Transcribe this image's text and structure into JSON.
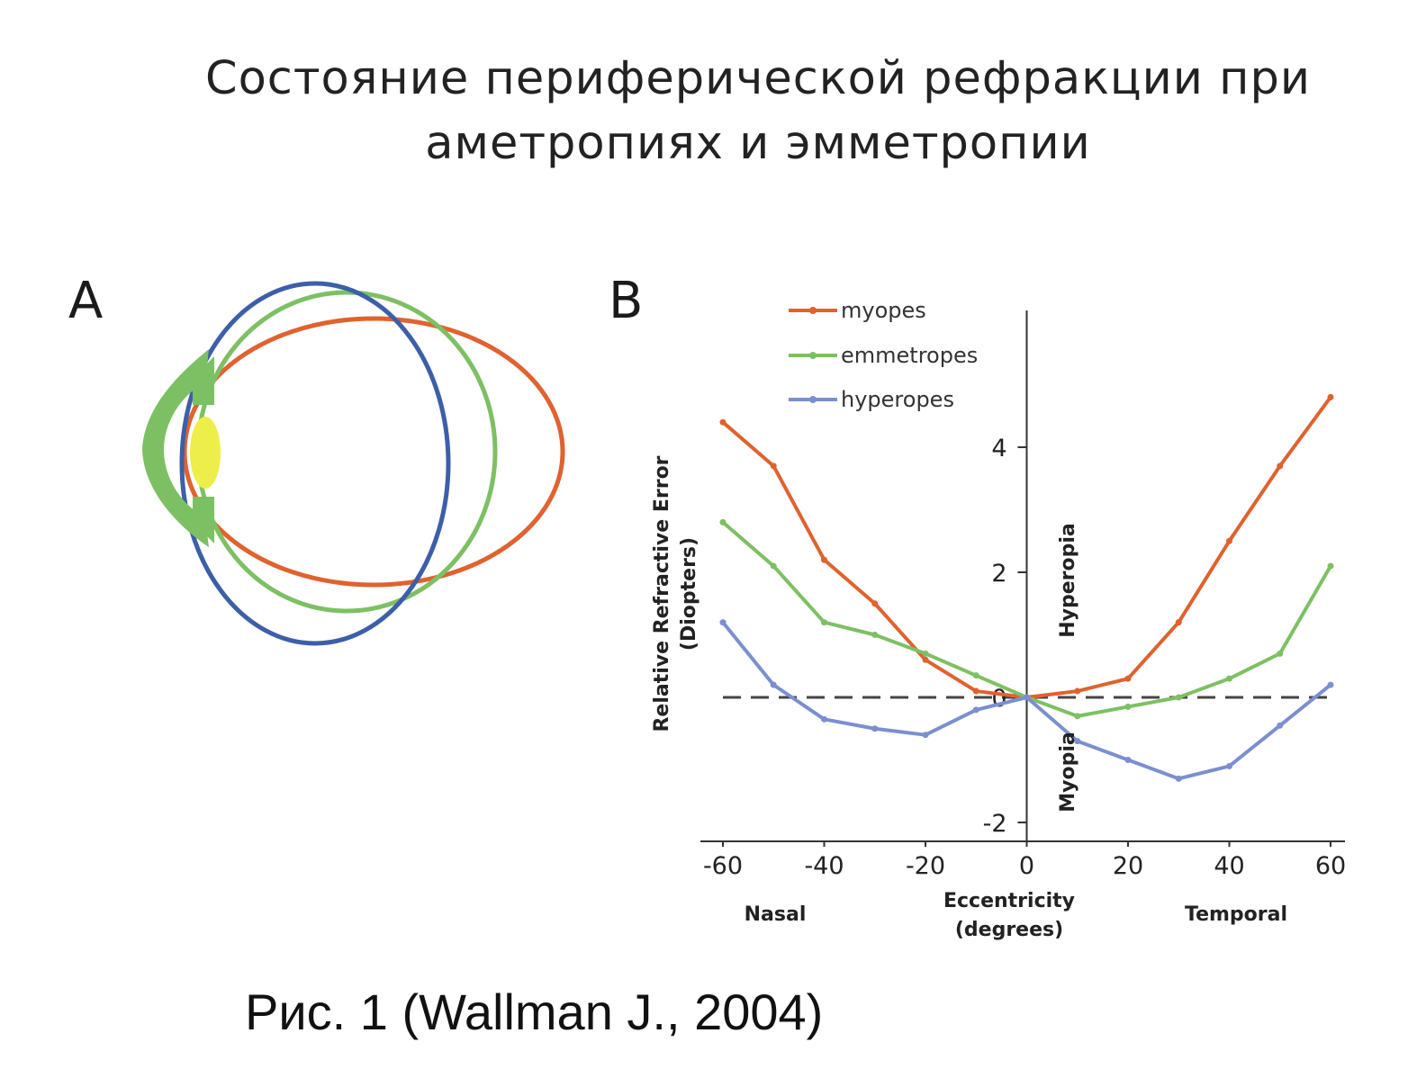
{
  "title": {
    "line1": "Состояние периферической рефракции при",
    "line2": "аметропиях и эмметропии"
  },
  "panel_a": {
    "label": "A",
    "colors": {
      "myopic_eye": "#e0622e",
      "emmetropic_eye": "#7dc063",
      "hyperopic_eye": "#3c5fa8",
      "cornea": "#7dc063",
      "lens": "#eeee4a"
    }
  },
  "panel_b": {
    "label": "B"
  },
  "caption": "Рис. 1 (Wallman J., 2004)",
  "chart_data": {
    "type": "line",
    "x": [
      -60,
      -50,
      -40,
      -30,
      -20,
      -10,
      0,
      10,
      20,
      30,
      40,
      50,
      60
    ],
    "series": [
      {
        "name": "myopes",
        "color": "#e0622e",
        "values": [
          4.4,
          3.7,
          2.2,
          1.5,
          0.6,
          0.1,
          0.0,
          0.1,
          0.3,
          1.2,
          2.5,
          3.7,
          4.8
        ]
      },
      {
        "name": "emmetropes",
        "color": "#7dc063",
        "values": [
          2.8,
          2.1,
          1.2,
          1.0,
          0.7,
          0.35,
          0.0,
          -0.3,
          -0.15,
          0.0,
          0.3,
          0.7,
          2.1
        ]
      },
      {
        "name": "hyperopes",
        "color": "#7b8fd0",
        "values": [
          1.2,
          0.2,
          -0.35,
          -0.5,
          -0.6,
          -0.2,
          0.0,
          -0.7,
          -1.0,
          -1.3,
          -1.1,
          -0.45,
          0.2
        ]
      }
    ],
    "xlim": [
      -60,
      60
    ],
    "ylim": [
      -2.3,
      6
    ],
    "xticks": [
      "-60",
      "-40",
      "-20",
      "0",
      "20",
      "40",
      "60"
    ],
    "xtick_values": [
      -60,
      -40,
      -20,
      0,
      20,
      40,
      60
    ],
    "yticks": [
      "-2",
      "0",
      "2",
      "4"
    ],
    "ytick_values": [
      -2,
      0,
      2,
      4
    ],
    "ylabel": {
      "line1": "Relative Refractive Error",
      "line2": "(Diopters)"
    },
    "xlabel": {
      "line1": "Eccentricity",
      "line2": "(degrees)"
    },
    "x_side_left": "Nasal",
    "x_side_right": "Temporal",
    "region_upper": "Hyperopia",
    "region_lower": "Myopia",
    "reference_line": 0,
    "legend_position": "top-left"
  }
}
